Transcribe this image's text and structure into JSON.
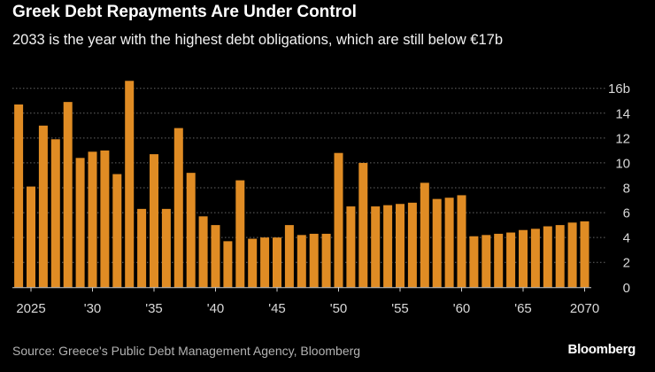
{
  "title": "Greek Debt Repayments Are Under Control",
  "subtitle": "2033 is the year with the highest debt obligations, which are still below €17b",
  "source": "Source: Greece's Public Debt Management Agency, Bloomberg",
  "logo": "Bloomberg",
  "chart_data": {
    "type": "bar",
    "title": "Greek Debt Repayments Are Under Control",
    "xlabel": "",
    "ylabel": "",
    "unit": "b",
    "ylim": [
      0,
      16
    ],
    "grid": true,
    "bar_color": "#e08c24",
    "yticks": [
      0,
      2,
      4,
      6,
      8,
      10,
      12,
      14,
      16
    ],
    "ytick_labels": [
      "0",
      "2",
      "4",
      "6",
      "8",
      "10",
      "12",
      "14",
      "16b"
    ],
    "xticks": [
      2025,
      2030,
      2035,
      2040,
      2045,
      2050,
      2055,
      2060,
      2065,
      2070
    ],
    "xtick_labels": [
      "2025",
      "'30",
      "'35",
      "'40",
      "'45",
      "'50",
      "'55",
      "'60",
      "'65",
      "2070"
    ],
    "categories": [
      2024,
      2025,
      2026,
      2027,
      2028,
      2029,
      2030,
      2031,
      2032,
      2033,
      2034,
      2035,
      2036,
      2037,
      2038,
      2039,
      2040,
      2041,
      2042,
      2043,
      2044,
      2045,
      2046,
      2047,
      2048,
      2049,
      2050,
      2051,
      2052,
      2053,
      2054,
      2055,
      2056,
      2057,
      2058,
      2059,
      2060,
      2061,
      2062,
      2063,
      2064,
      2065,
      2066,
      2067,
      2068,
      2069,
      2070
    ],
    "values": [
      14.7,
      8.1,
      13.0,
      11.9,
      14.9,
      10.4,
      10.9,
      11.0,
      9.1,
      16.6,
      6.3,
      10.7,
      6.3,
      12.8,
      9.2,
      5.7,
      5.0,
      3.7,
      8.6,
      3.9,
      4.0,
      4.0,
      5.0,
      4.2,
      4.3,
      4.3,
      10.8,
      6.5,
      10.0,
      6.5,
      6.6,
      6.7,
      6.8,
      8.4,
      7.1,
      7.2,
      7.4,
      4.1,
      4.2,
      4.3,
      4.4,
      4.6,
      4.7,
      4.9,
      5.0,
      5.2,
      5.3
    ]
  }
}
